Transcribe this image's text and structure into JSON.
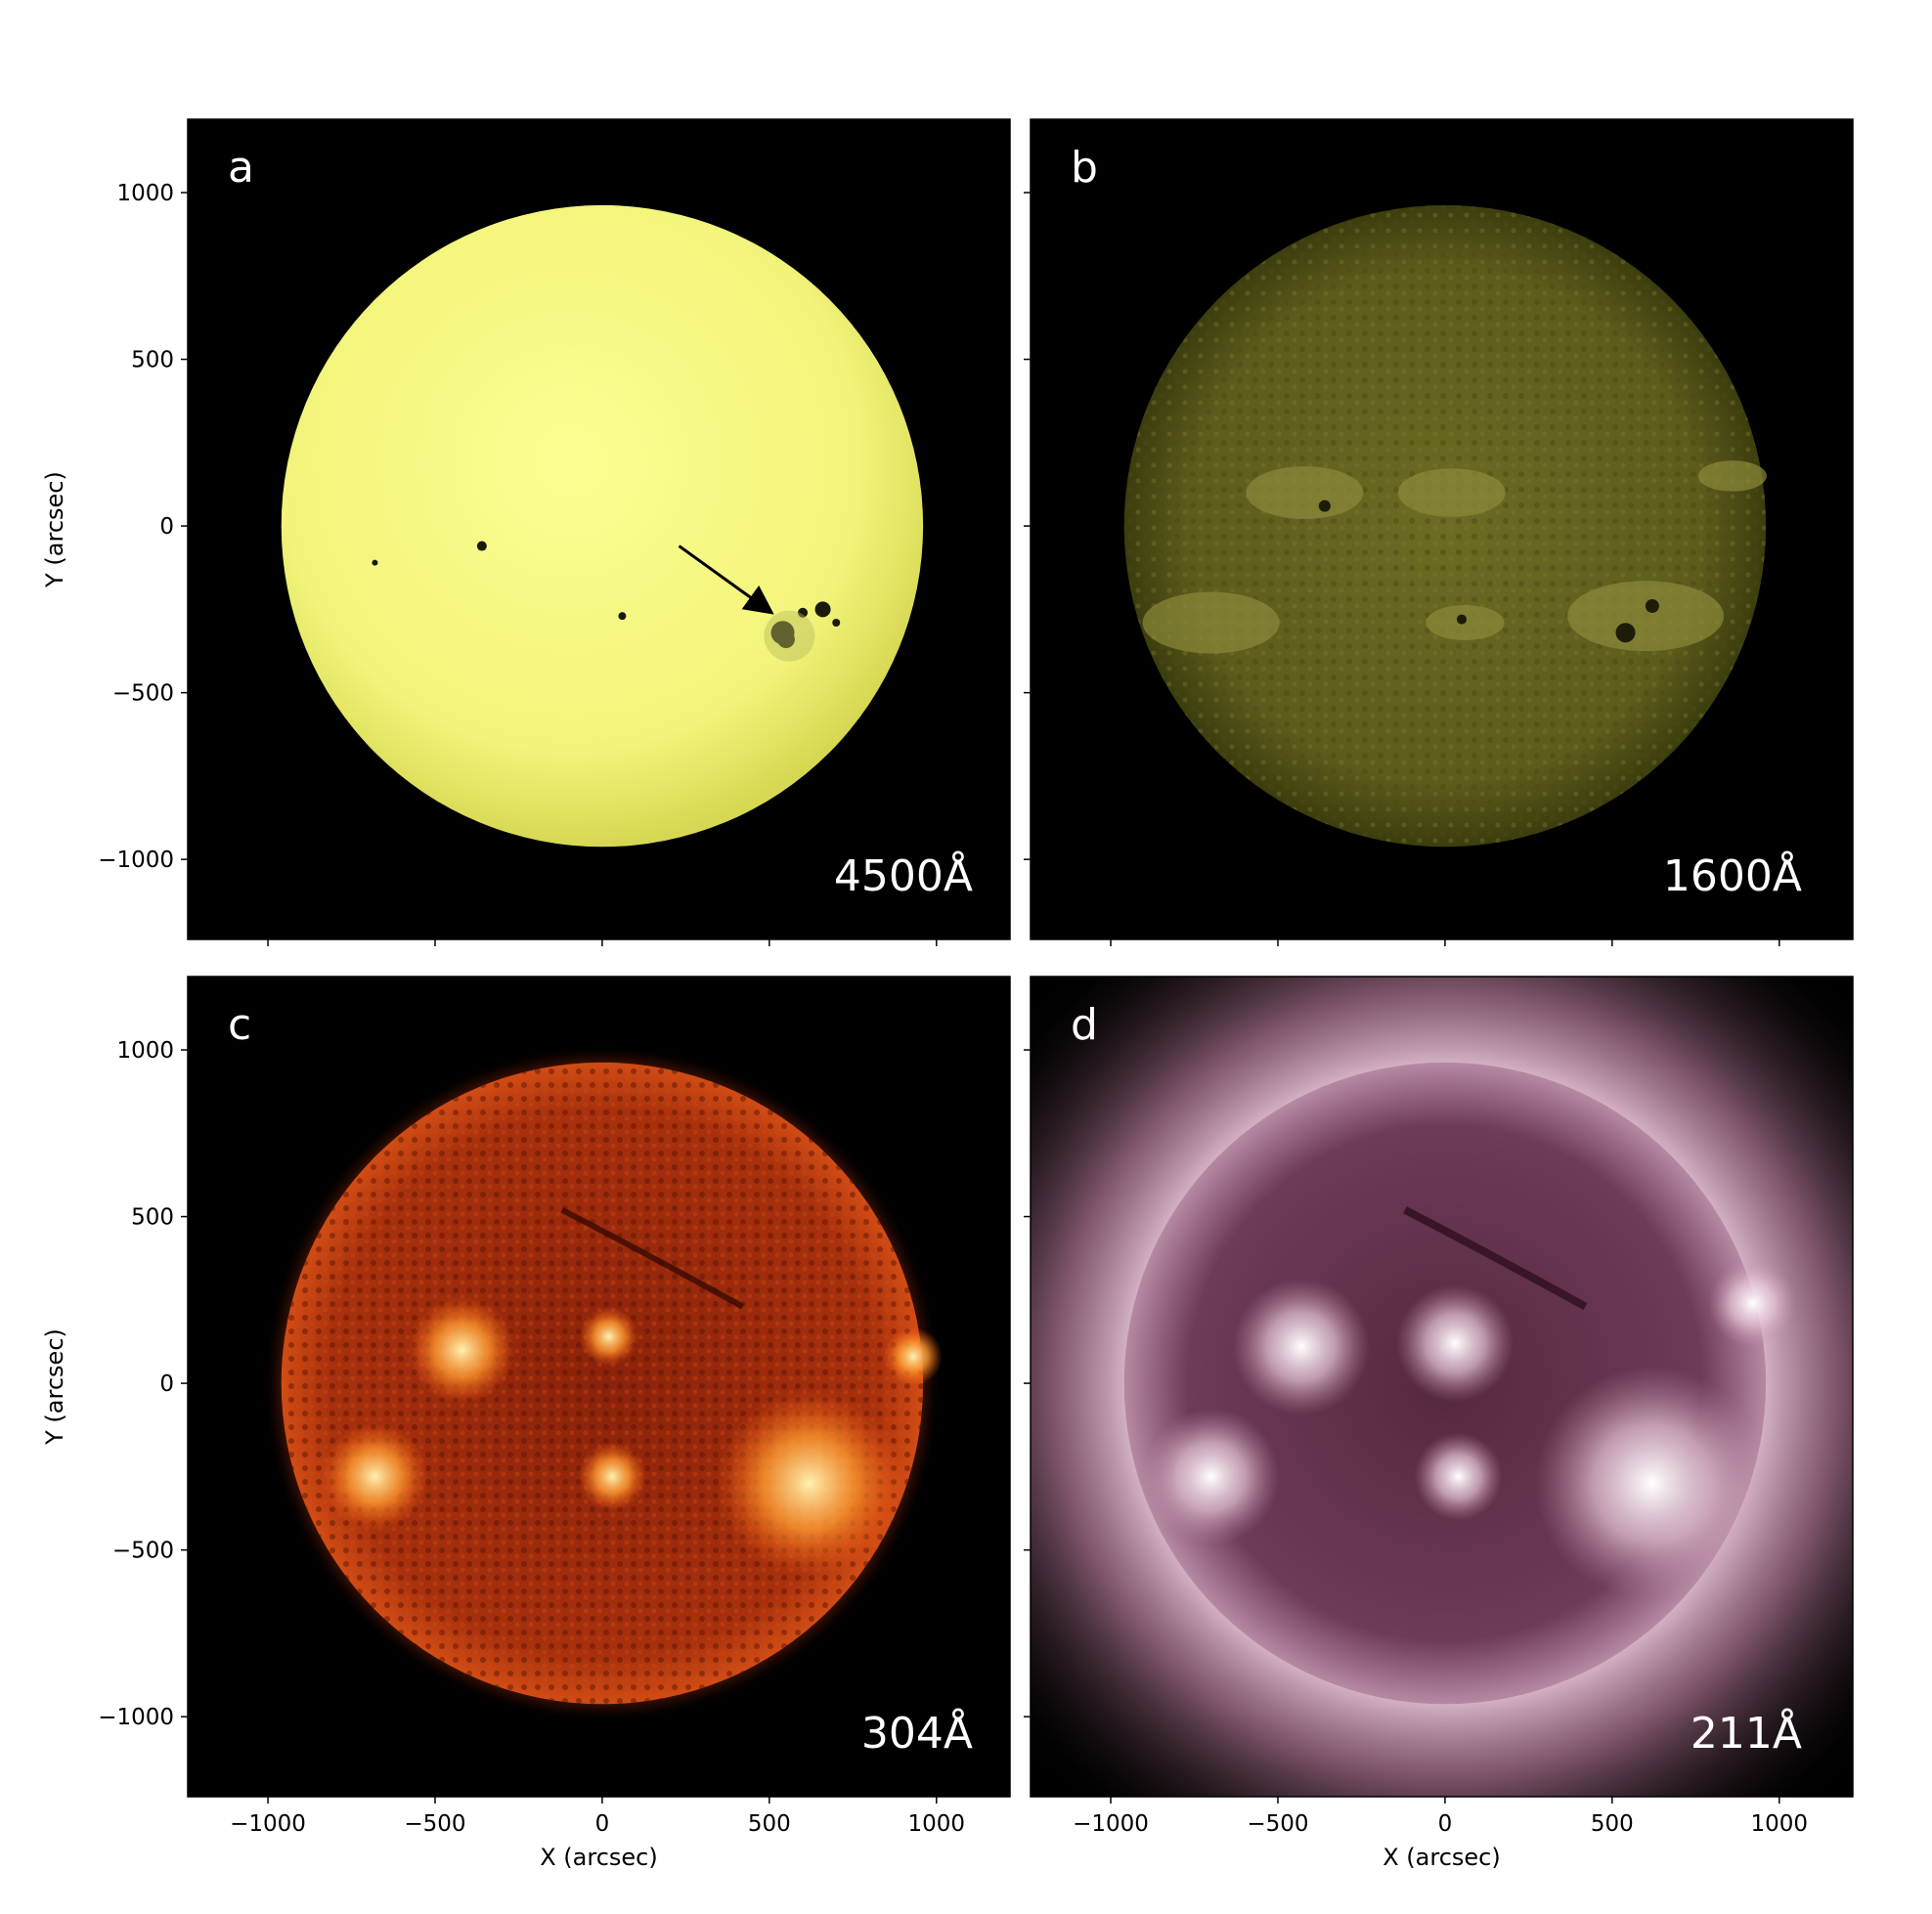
{
  "figure": {
    "axis_ticks": [
      "−1000",
      "−500",
      "0",
      "500",
      "1000"
    ],
    "xlabel": "X (arcsec)",
    "ylabel": "Y (arcsec)",
    "panels": [
      {
        "id": "a",
        "letter": "a",
        "wavelength": "4500Å",
        "style": "continuum",
        "colors": {
          "disk_center": "#fbfd8e",
          "disk_edge": "#d8da55",
          "spot": "#1a1a0a"
        },
        "annotation": "arrow pointing to sunspot group"
      },
      {
        "id": "b",
        "letter": "b",
        "wavelength": "1600Å",
        "style": "uv",
        "colors": {
          "disk_center": "#6a6a22",
          "disk_edge": "#3e3e10",
          "plage": "#8c8a3a"
        }
      },
      {
        "id": "c",
        "letter": "c",
        "wavelength": "304Å",
        "style": "he",
        "colors": {
          "disk_center": "#9a2a0a",
          "disk_edge": "#c2400f",
          "bright": "#ffc060"
        }
      },
      {
        "id": "d",
        "letter": "d",
        "wavelength": "211Å",
        "style": "euv",
        "colors": {
          "disk_center": "#5a2c46",
          "corona": "#d8b2c8",
          "bright": "#f4e6ef"
        }
      }
    ]
  }
}
